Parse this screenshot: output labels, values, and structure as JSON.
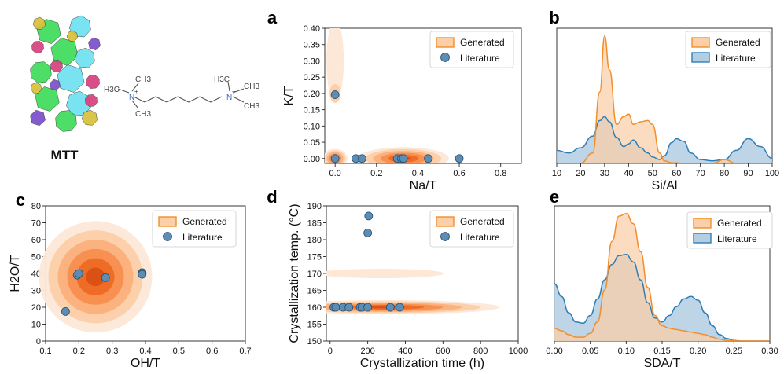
{
  "colors": {
    "generated_line": "#f28e2b",
    "generated_fill": "#fbcfa8",
    "literature_line": "#2f7fb5",
    "literature_fill": "#b3cde3",
    "literature_marker": "#5b8db5",
    "overlap_fill": "#bdb6ad",
    "kde_levels": [
      "#fde8d8",
      "#fccfa9",
      "#fbb07c",
      "#f78e4e",
      "#ee6a25",
      "#d95012"
    ]
  },
  "structure": {
    "framework_label": "MTT",
    "sda_formula": {
      "left_group": "H3C–N+(CH3)2",
      "right_group": "N+(CH3)3",
      "labels": [
        "H3C",
        "CH3",
        "CH3",
        "H3C",
        "CH3",
        "CH3",
        "N",
        "N",
        "+",
        "+"
      ]
    }
  },
  "chart_data": [
    {
      "id": "a",
      "type": "scatter",
      "panel_label": "a",
      "xlabel": "Na/T",
      "ylabel": "K/T",
      "xlim": [
        -0.05,
        0.9
      ],
      "ylim": [
        -0.015,
        0.4
      ],
      "xticks": [
        "0.0",
        "0.2",
        "0.4",
        "0.6",
        "0.8"
      ],
      "yticks": [
        "0.00",
        "0.05",
        "0.10",
        "0.15",
        "0.20",
        "0.25",
        "0.30",
        "0.35",
        "0.40"
      ],
      "legend": [
        "Generated",
        "Literature"
      ],
      "legend_position": "top-right",
      "series": [
        {
          "name": "Literature",
          "points": [
            [
              0.0,
              0.0
            ],
            [
              0.0,
              0.196
            ],
            [
              0.1,
              0.0
            ],
            [
              0.13,
              0.0
            ],
            [
              0.3,
              0.0
            ],
            [
              0.32,
              0.0
            ],
            [
              0.33,
              0.0
            ],
            [
              0.45,
              0.0
            ],
            [
              0.6,
              0.0
            ]
          ]
        },
        {
          "name": "Generated",
          "density_centers": [
            [
              0.0,
              0.0
            ],
            [
              0.33,
              0.0
            ],
            [
              0.0,
              0.2
            ]
          ]
        }
      ]
    },
    {
      "id": "b",
      "type": "area",
      "panel_label": "b",
      "xlabel": "Si/Al",
      "ylabel": "",
      "xlim": [
        10,
        100
      ],
      "xticks": [
        "10",
        "20",
        "30",
        "40",
        "50",
        "60",
        "70",
        "80",
        "90",
        "100"
      ],
      "legend": [
        "Generated",
        "Literature"
      ],
      "legend_position": "top-right",
      "x": [
        10,
        15,
        20,
        25,
        28,
        30,
        32,
        35,
        38,
        40,
        42,
        45,
        48,
        50,
        53,
        55,
        58,
        60,
        63,
        66,
        70,
        75,
        80,
        85,
        90,
        95,
        100
      ],
      "series": [
        {
          "name": "Generated",
          "values": [
            0,
            0,
            0.002,
            0.08,
            0.55,
            0.98,
            0.72,
            0.3,
            0.36,
            0.38,
            0.3,
            0.32,
            0.33,
            0.3,
            0.08,
            0.02,
            0.005,
            0.005,
            0,
            0,
            0,
            0,
            0.03,
            0,
            0,
            0,
            0
          ]
        },
        {
          "name": "Literature",
          "values": [
            0.1,
            0.08,
            0.12,
            0.21,
            0.33,
            0.36,
            0.32,
            0.2,
            0.13,
            0.15,
            0.18,
            0.12,
            0.08,
            0.05,
            0.03,
            0.06,
            0.16,
            0.19,
            0.17,
            0.08,
            0.03,
            0.02,
            0.03,
            0.1,
            0.19,
            0.13,
            0.04
          ]
        }
      ]
    },
    {
      "id": "c",
      "type": "scatter",
      "panel_label": "c",
      "xlabel": "OH/T",
      "ylabel": "H2O/T",
      "xlim": [
        0.1,
        0.7
      ],
      "ylim": [
        0,
        80
      ],
      "xticks": [
        "0.1",
        "0.2",
        "0.3",
        "0.4",
        "0.5",
        "0.6",
        "0.7"
      ],
      "yticks": [
        "0",
        "10",
        "20",
        "30",
        "40",
        "50",
        "60",
        "70",
        "80"
      ],
      "legend": [
        "Generated",
        "Literature"
      ],
      "legend_position": "top-right",
      "series": [
        {
          "name": "Literature",
          "points": [
            [
              0.16,
              17.5
            ],
            [
              0.195,
              39
            ],
            [
              0.2,
              40
            ],
            [
              0.28,
              37.5
            ],
            [
              0.39,
              40.5
            ],
            [
              0.39,
              39.5
            ]
          ]
        },
        {
          "name": "Generated",
          "density_centers": [
            [
              0.25,
              38
            ]
          ]
        }
      ]
    },
    {
      "id": "d",
      "type": "scatter",
      "panel_label": "d",
      "xlabel": "Crystallization time (h)",
      "ylabel": "Crystallization temp. (°C)",
      "xlim": [
        -20,
        1000
      ],
      "ylim": [
        150,
        190
      ],
      "xticks": [
        "0",
        "200",
        "400",
        "600",
        "800",
        "1000"
      ],
      "yticks": [
        "150",
        "155",
        "160",
        "165",
        "170",
        "175",
        "180",
        "185",
        "190"
      ],
      "legend": [
        "Generated",
        "Literature"
      ],
      "legend_position": "top-right",
      "series": [
        {
          "name": "Literature",
          "points": [
            [
              20,
              160
            ],
            [
              30,
              160
            ],
            [
              70,
              160
            ],
            [
              100,
              160
            ],
            [
              160,
              160
            ],
            [
              170,
              160
            ],
            [
              200,
              160
            ],
            [
              200,
              182
            ],
            [
              205,
              187
            ],
            [
              320,
              160
            ],
            [
              370,
              160
            ]
          ]
        },
        {
          "name": "Generated",
          "density_centers": [
            [
              190,
              160
            ],
            [
              200,
              170
            ]
          ]
        }
      ]
    },
    {
      "id": "e",
      "type": "area",
      "panel_label": "e",
      "xlabel": "SDA/T",
      "ylabel": "",
      "xlim": [
        0.0,
        0.3
      ],
      "xticks": [
        "0.00",
        "0.05",
        "0.10",
        "0.15",
        "0.20",
        "0.25",
        "0.30"
      ],
      "legend": [
        "Generated",
        "Literature"
      ],
      "legend_position": "top-right",
      "x": [
        0.0,
        0.01,
        0.02,
        0.03,
        0.04,
        0.05,
        0.06,
        0.07,
        0.08,
        0.09,
        0.1,
        0.11,
        0.12,
        0.13,
        0.14,
        0.15,
        0.16,
        0.17,
        0.18,
        0.19,
        0.2,
        0.21,
        0.22,
        0.23,
        0.24,
        0.25,
        0.26,
        0.28,
        0.3
      ],
      "series": [
        {
          "name": "Generated",
          "values": [
            0.1,
            0.08,
            0.05,
            0.03,
            0.03,
            0.06,
            0.15,
            0.4,
            0.78,
            0.98,
            1.0,
            0.92,
            0.7,
            0.42,
            0.2,
            0.12,
            0.1,
            0.09,
            0.08,
            0.07,
            0.06,
            0.05,
            0.03,
            0.015,
            0.005,
            0.002,
            0,
            0,
            0
          ]
        },
        {
          "name": "Literature",
          "values": [
            0.45,
            0.35,
            0.22,
            0.15,
            0.14,
            0.2,
            0.33,
            0.48,
            0.6,
            0.67,
            0.68,
            0.62,
            0.48,
            0.3,
            0.18,
            0.15,
            0.2,
            0.27,
            0.33,
            0.35,
            0.32,
            0.22,
            0.12,
            0.05,
            0.02,
            0.005,
            0,
            0,
            0
          ]
        }
      ]
    }
  ]
}
